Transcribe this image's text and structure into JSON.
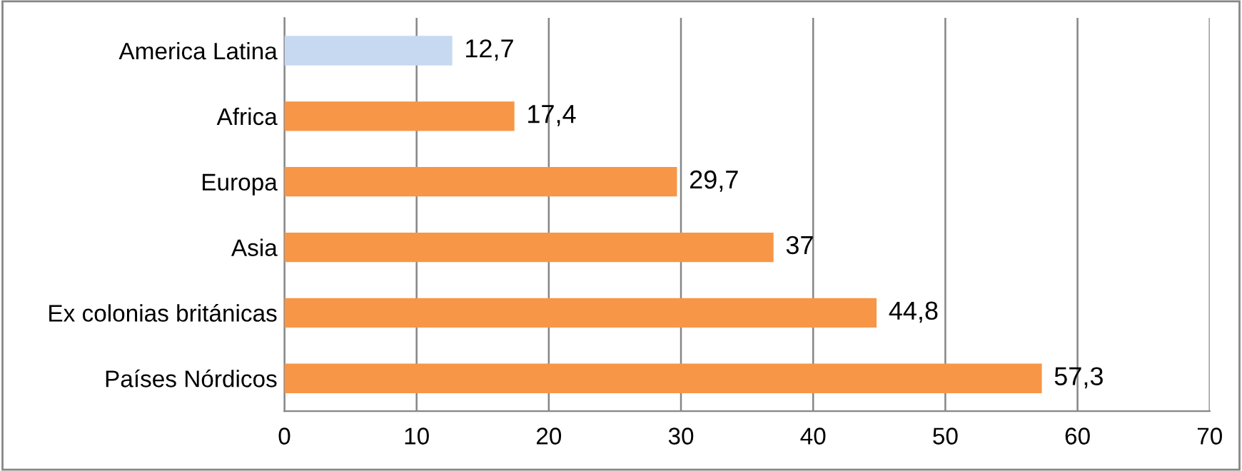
{
  "chart_data": {
    "type": "bar",
    "orientation": "horizontal",
    "categories": [
      "America Latina",
      "Africa",
      "Europa",
      "Asia",
      "Ex colonias británicas",
      "Países Nórdicos"
    ],
    "values": [
      12.7,
      17.4,
      29.7,
      37,
      44.8,
      57.3
    ],
    "colors": [
      "#c6d9f1",
      "#f79646",
      "#f79646",
      "#f79646",
      "#f79646",
      "#f79646"
    ],
    "value_labels": [
      "12,7",
      "17,4",
      "29,7",
      "37",
      "44,8",
      "57,3"
    ],
    "xlim": [
      0,
      70
    ],
    "xticks": [
      0,
      10,
      20,
      30,
      40,
      50,
      60,
      70
    ],
    "grid": "x"
  }
}
